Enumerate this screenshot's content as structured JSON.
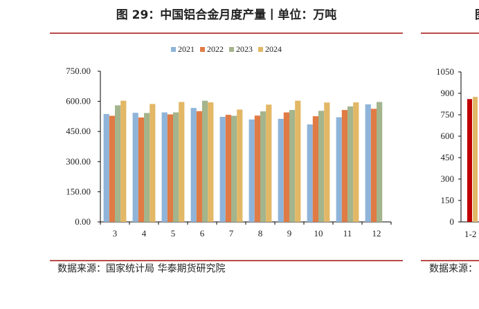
{
  "left_panel": {
    "title": "图 29：中国铝合金月度产量丨单位：万吨",
    "source": "数据来源：国家统计局 华泰期货研究院"
  },
  "right_panel": {
    "title": "图",
    "source": "数据来源："
  },
  "chart_data": [
    {
      "type": "bar",
      "title": "图 29：中国铝合金月度产量丨单位：万吨",
      "xlabel": "",
      "ylabel": "",
      "categories": [
        "3",
        "4",
        "5",
        "6",
        "7",
        "8",
        "9",
        "10",
        "11",
        "12"
      ],
      "ylim": [
        0,
        750
      ],
      "yticks": [
        "0.00",
        "150.00",
        "300.00",
        "450.00",
        "600.00",
        "750.00"
      ],
      "grid": false,
      "legend_position": "top-center",
      "series": [
        {
          "name": "2021",
          "color": "#8fb4d9",
          "values": [
            537,
            543,
            545,
            567,
            523,
            510,
            513,
            485,
            521,
            585
          ]
        },
        {
          "name": "2022",
          "color": "#e07b45",
          "values": [
            528,
            520,
            535,
            551,
            533,
            529,
            545,
            526,
            557,
            563
          ]
        },
        {
          "name": "2023",
          "color": "#a4b48c",
          "values": [
            580,
            542,
            545,
            603,
            528,
            550,
            557,
            553,
            575,
            597
          ]
        },
        {
          "name": "2024",
          "color": "#e2b766",
          "values": [
            603,
            587,
            597,
            595,
            559,
            584,
            603,
            594,
            595,
            null
          ]
        }
      ]
    },
    {
      "type": "bar",
      "title": "",
      "categories": [
        "1-2"
      ],
      "ylim": [
        0,
        1050
      ],
      "yticks": [
        "0",
        "150",
        "300",
        "450",
        "600",
        "750",
        "900",
        "1050"
      ],
      "grid": false,
      "series": [
        {
          "color": "#c00000",
          "values": [
            860
          ]
        },
        {
          "color": "#e2b766",
          "values": [
            875
          ]
        }
      ]
    }
  ]
}
